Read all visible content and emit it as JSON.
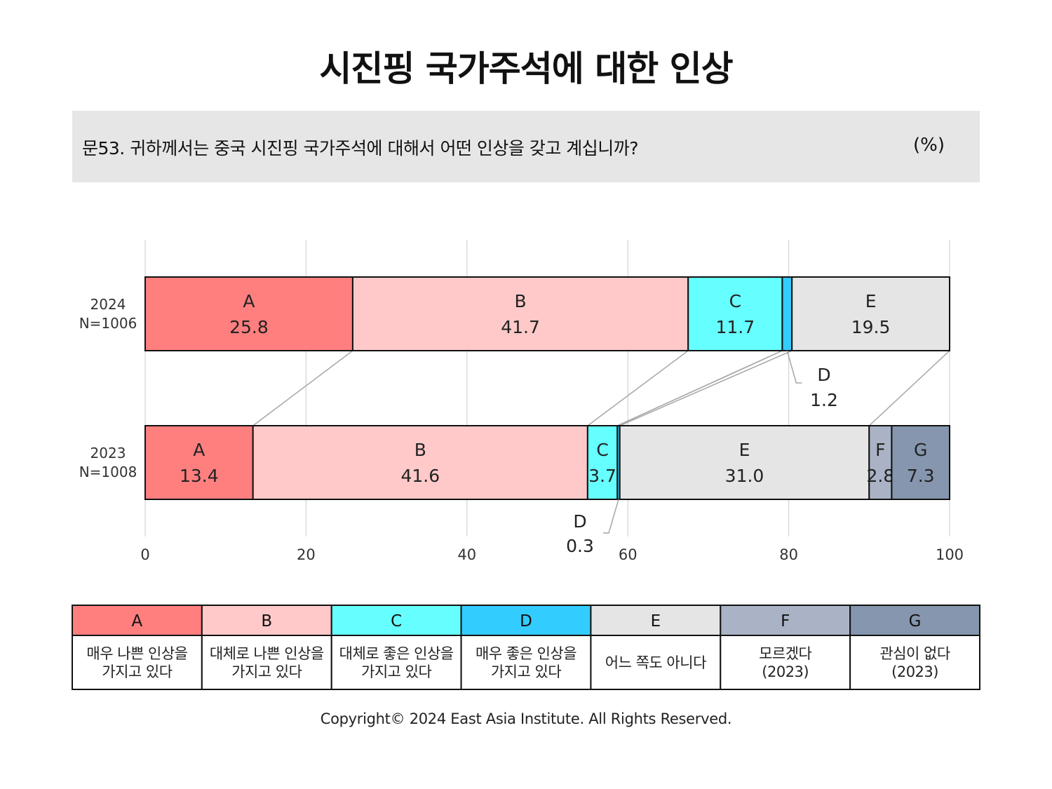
{
  "title": "시진핑 국가주석에 대한 인상",
  "question": {
    "text": "문53. 귀하께서는 중국 시진핑 국가주석에 대해서 어떤 인상을 갖고 계십니까?",
    "unit": "(%)"
  },
  "colors": {
    "A": "#ff7f7f",
    "B": "#ffc9c9",
    "C": "#66ffff",
    "D": "#33ccff",
    "E": "#e6e5e6",
    "F": "#aab3c6",
    "G": "#8596ae",
    "grid": "#d4d4d4",
    "connector": "#a6a6a6"
  },
  "chart_data": {
    "type": "bar",
    "orientation": "horizontal",
    "stacked": true,
    "xlim": [
      0,
      100
    ],
    "xticks": [
      0,
      20,
      40,
      60,
      80,
      100
    ],
    "grid": true,
    "rows": [
      {
        "label_year": "2024",
        "label_n": "N=1006",
        "segments": [
          {
            "key": "A",
            "value": 25.8,
            "value_label": "25.8"
          },
          {
            "key": "B",
            "value": 41.7,
            "value_label": "41.7"
          },
          {
            "key": "C",
            "value": 11.7,
            "value_label": "11.7"
          },
          {
            "key": "D",
            "value": 1.2,
            "value_label": "1.2"
          },
          {
            "key": "E",
            "value": 19.5,
            "value_label": "19.5"
          }
        ]
      },
      {
        "label_year": "2023",
        "label_n": "N=1008",
        "segments": [
          {
            "key": "A",
            "value": 13.4,
            "value_label": "13.4"
          },
          {
            "key": "B",
            "value": 41.6,
            "value_label": "41.6"
          },
          {
            "key": "C",
            "value": 3.7,
            "value_label": "3.7"
          },
          {
            "key": "D",
            "value": 0.3,
            "value_label": "0.3"
          },
          {
            "key": "E",
            "value": 31.0,
            "value_label": "31.0"
          },
          {
            "key": "F",
            "value": 2.8,
            "value_label": "2.8"
          },
          {
            "key": "G",
            "value": 7.3,
            "value_label": "7.3"
          }
        ]
      }
    ],
    "legend": [
      {
        "key": "A",
        "lines": [
          "매우 나쁜 인상을",
          "가지고 있다"
        ]
      },
      {
        "key": "B",
        "lines": [
          "대체로 나쁜 인상을",
          "가지고 있다"
        ]
      },
      {
        "key": "C",
        "lines": [
          "대체로 좋은 인상을",
          "가지고 있다"
        ]
      },
      {
        "key": "D",
        "lines": [
          "매우 좋은 인상을",
          "가지고 있다"
        ]
      },
      {
        "key": "E",
        "lines": [
          "어느 쪽도 아니다"
        ]
      },
      {
        "key": "F",
        "lines": [
          "모르겠다",
          "(2023)"
        ]
      },
      {
        "key": "G",
        "lines": [
          "관심이 없다",
          "(2023)"
        ]
      }
    ]
  },
  "copyright": "Copyright© 2024 East Asia Institute. All Rights Reserved."
}
